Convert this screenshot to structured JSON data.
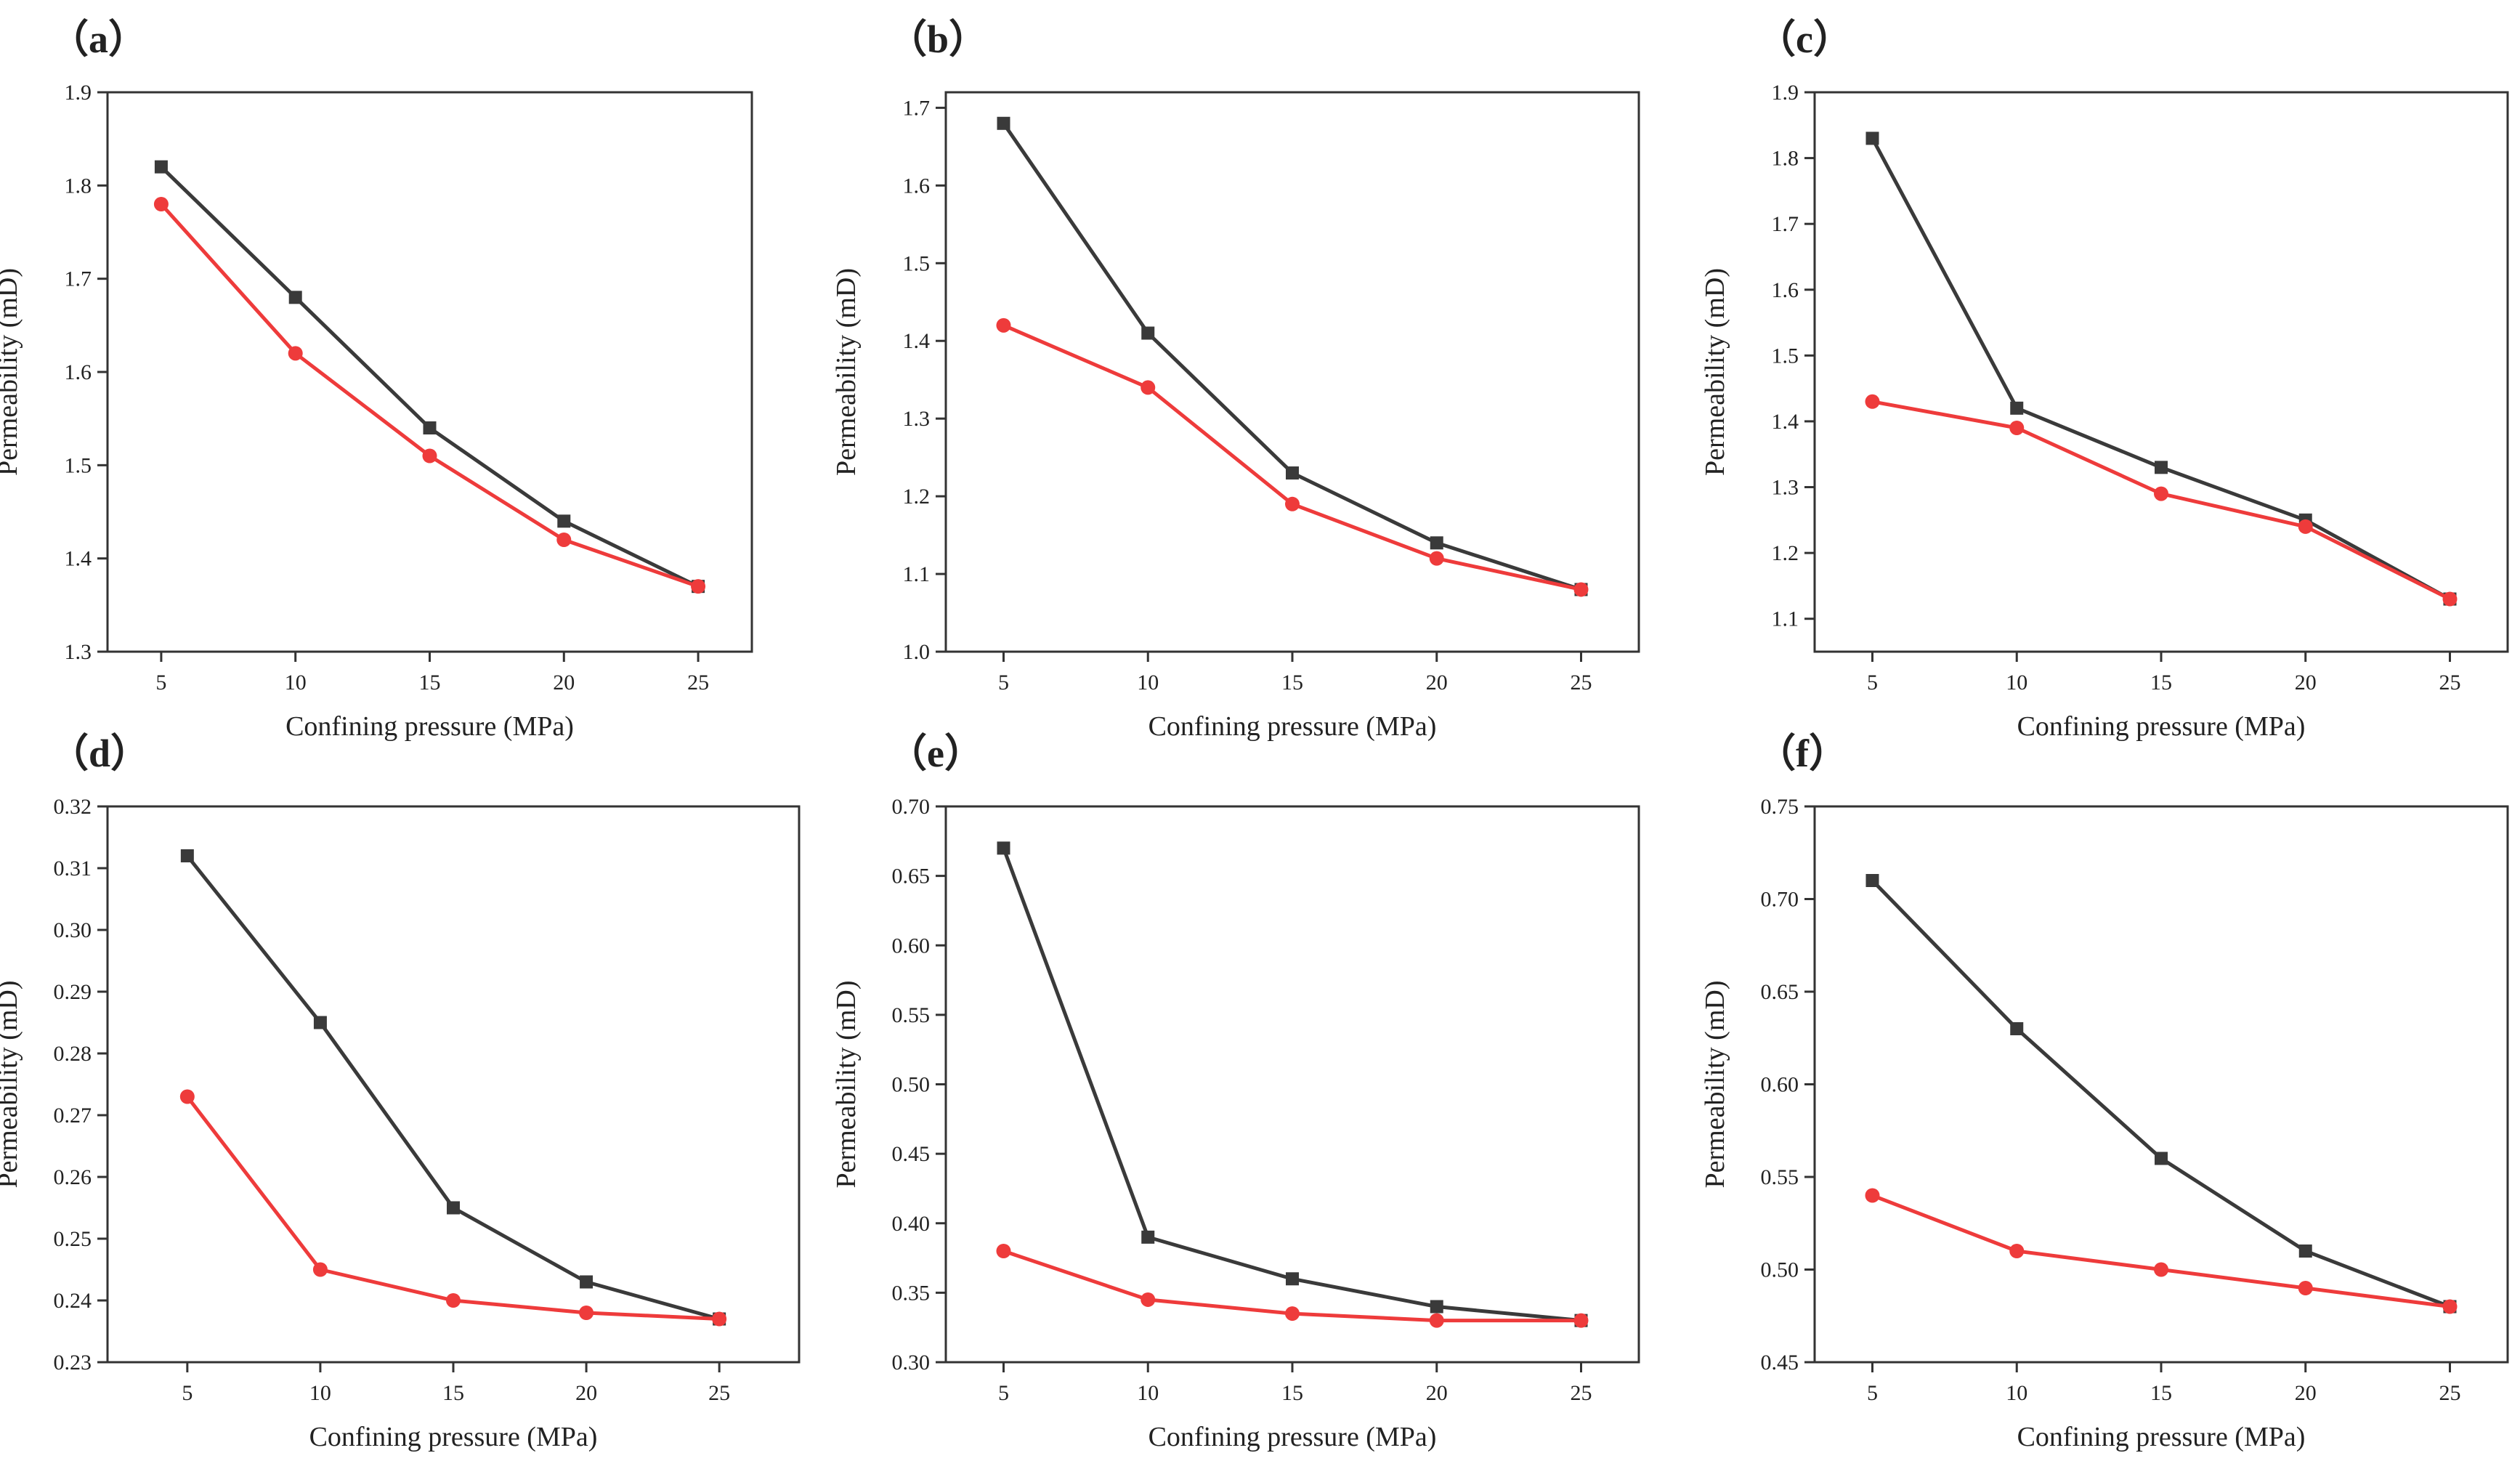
{
  "colors": {
    "black_series": "#3a3a3a",
    "red_series": "#ee3b3b",
    "axis": "#333333"
  },
  "chart_data": [
    {
      "type": "line",
      "panel_label": "（a）",
      "xlabel": "Confining pressure (MPa)",
      "ylabel": "Permeability (mD)",
      "x": [
        5,
        10,
        15,
        20,
        25
      ],
      "x_ticks": [
        "5",
        "10",
        "15",
        "20",
        "25"
      ],
      "xlim": [
        3,
        27
      ],
      "ylim": [
        1.3,
        1.9
      ],
      "y_ticks": [
        "1.3",
        "1.4",
        "1.5",
        "1.6",
        "1.7",
        "1.8",
        "1.9"
      ],
      "grid": false,
      "legend": "none",
      "series": [
        {
          "marker": "square",
          "color": "#3a3a3a",
          "values": [
            1.82,
            1.68,
            1.54,
            1.44,
            1.37
          ]
        },
        {
          "marker": "circle",
          "color": "#ee3b3b",
          "values": [
            1.78,
            1.62,
            1.51,
            1.42,
            1.37
          ]
        }
      ]
    },
    {
      "type": "line",
      "panel_label": "（b）",
      "xlabel": "Confining pressure (MPa)",
      "ylabel": "Permeability (mD)",
      "x": [
        5,
        10,
        15,
        20,
        25
      ],
      "x_ticks": [
        "5",
        "10",
        "15",
        "20",
        "25"
      ],
      "xlim": [
        3,
        27
      ],
      "ylim": [
        1.0,
        1.72
      ],
      "y_ticks": [
        "1.0",
        "1.1",
        "1.2",
        "1.3",
        "1.4",
        "1.5",
        "1.6",
        "1.7"
      ],
      "grid": false,
      "legend": "none",
      "series": [
        {
          "marker": "square",
          "color": "#3a3a3a",
          "values": [
            1.68,
            1.41,
            1.23,
            1.14,
            1.08
          ]
        },
        {
          "marker": "circle",
          "color": "#ee3b3b",
          "values": [
            1.42,
            1.34,
            1.19,
            1.12,
            1.08
          ]
        }
      ]
    },
    {
      "type": "line",
      "panel_label": "（c）",
      "xlabel": "Confining pressure (MPa)",
      "ylabel": "Permeability (mD)",
      "x": [
        5,
        10,
        15,
        20,
        25
      ],
      "x_ticks": [
        "5",
        "10",
        "15",
        "20",
        "25"
      ],
      "xlim": [
        3,
        27
      ],
      "ylim": [
        1.05,
        1.9
      ],
      "y_ticks": [
        "1.1",
        "1.2",
        "1.3",
        "1.4",
        "1.5",
        "1.6",
        "1.7",
        "1.8",
        "1.9"
      ],
      "grid": false,
      "legend": "none",
      "series": [
        {
          "marker": "square",
          "color": "#3a3a3a",
          "values": [
            1.83,
            1.42,
            1.33,
            1.25,
            1.13
          ]
        },
        {
          "marker": "circle",
          "color": "#ee3b3b",
          "values": [
            1.43,
            1.39,
            1.29,
            1.24,
            1.13
          ]
        }
      ]
    },
    {
      "type": "line",
      "panel_label": "（d）",
      "xlabel": "Confining pressure (MPa)",
      "ylabel": "Permeability (mD)",
      "x": [
        5,
        10,
        15,
        20,
        25
      ],
      "x_ticks": [
        "5",
        "10",
        "15",
        "20",
        "25"
      ],
      "xlim": [
        2,
        28
      ],
      "ylim": [
        0.23,
        0.32
      ],
      "y_ticks": [
        "0.23",
        "0.24",
        "0.25",
        "0.26",
        "0.27",
        "0.28",
        "0.29",
        "0.30",
        "0.31",
        "0.32"
      ],
      "grid": false,
      "legend": "none",
      "series": [
        {
          "marker": "square",
          "color": "#3a3a3a",
          "values": [
            0.312,
            0.285,
            0.255,
            0.243,
            0.237
          ]
        },
        {
          "marker": "circle",
          "color": "#ee3b3b",
          "values": [
            0.273,
            0.245,
            0.24,
            0.238,
            0.237
          ]
        }
      ]
    },
    {
      "type": "line",
      "panel_label": "（e）",
      "xlabel": "Confining pressure (MPa)",
      "ylabel": "Permeability (mD)",
      "x": [
        5,
        10,
        15,
        20,
        25
      ],
      "x_ticks": [
        "5",
        "10",
        "15",
        "20",
        "25"
      ],
      "xlim": [
        3,
        27
      ],
      "ylim": [
        0.3,
        0.7
      ],
      "y_ticks": [
        "0.30",
        "0.35",
        "0.40",
        "0.45",
        "0.50",
        "0.55",
        "0.60",
        "0.65",
        "0.70"
      ],
      "grid": false,
      "legend": "none",
      "series": [
        {
          "marker": "square",
          "color": "#3a3a3a",
          "values": [
            0.67,
            0.39,
            0.36,
            0.34,
            0.33
          ]
        },
        {
          "marker": "circle",
          "color": "#ee3b3b",
          "values": [
            0.38,
            0.345,
            0.335,
            0.33,
            0.33
          ]
        }
      ]
    },
    {
      "type": "line",
      "panel_label": "（f）",
      "xlabel": "Confining pressure (MPa)",
      "ylabel": "Permeability (mD)",
      "x": [
        5,
        10,
        15,
        20,
        25
      ],
      "x_ticks": [
        "5",
        "10",
        "15",
        "20",
        "25"
      ],
      "xlim": [
        3,
        27
      ],
      "ylim": [
        0.45,
        0.75
      ],
      "y_ticks": [
        "0.45",
        "0.50",
        "0.55",
        "0.60",
        "0.65",
        "0.70",
        "0.75"
      ],
      "grid": false,
      "legend": "none",
      "series": [
        {
          "marker": "square",
          "color": "#3a3a3a",
          "values": [
            0.71,
            0.63,
            0.56,
            0.51,
            0.48
          ]
        },
        {
          "marker": "circle",
          "color": "#ee3b3b",
          "values": [
            0.54,
            0.51,
            0.5,
            0.49,
            0.48
          ]
        }
      ]
    }
  ]
}
